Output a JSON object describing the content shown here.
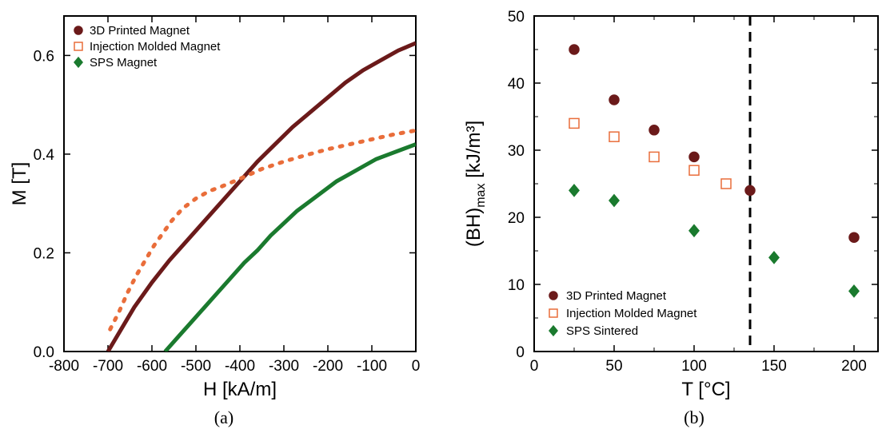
{
  "panel_a": {
    "type": "line",
    "caption": "(a)",
    "xlabel": "H [kA/m]",
    "ylabel": "M [T]",
    "xlim": [
      -800,
      0
    ],
    "ylim": [
      0.0,
      0.68
    ],
    "xticks": [
      -800,
      -700,
      -600,
      -500,
      -400,
      -300,
      -200,
      -100,
      0
    ],
    "yticks": [
      0.0,
      0.2,
      0.4,
      0.6
    ],
    "label_fontsize": 24,
    "tick_fontsize": 19,
    "axis_color": "#000000",
    "background_color": "#ffffff",
    "frame_linewidth": 2,
    "legend": {
      "position": "upper-left",
      "items": [
        {
          "label": "3D Printed Magnet",
          "color": "#6b1a1a",
          "marker": "circle",
          "marker_fill": "#6b1a1a",
          "linestyle": "solid"
        },
        {
          "label": "Injection Molded Magnet",
          "color": "#e96d3a",
          "marker": "square",
          "marker_fill": "#ffffff",
          "linestyle": "dotted"
        },
        {
          "label": "SPS Magnet",
          "color": "#1a7a2e",
          "marker": "diamond",
          "marker_fill": "#1a7a2e",
          "linestyle": "solid"
        }
      ],
      "fontsize": 15
    },
    "series": [
      {
        "name": "3D Printed Magnet",
        "color": "#6b1a1a",
        "linewidth": 5,
        "linestyle": "solid",
        "x": [
          -700,
          -670,
          -640,
          -600,
          -560,
          -520,
          -480,
          -440,
          -400,
          -360,
          -320,
          -280,
          -240,
          -200,
          -160,
          -120,
          -80,
          -40,
          0
        ],
        "y": [
          0.0,
          0.045,
          0.09,
          0.14,
          0.185,
          0.225,
          0.265,
          0.305,
          0.345,
          0.385,
          0.42,
          0.455,
          0.485,
          0.515,
          0.545,
          0.57,
          0.59,
          0.61,
          0.625
        ]
      },
      {
        "name": "Injection Molded Magnet",
        "color": "#e96d3a",
        "linewidth": 5,
        "linestyle": "dotted",
        "x": [
          -695,
          -675,
          -655,
          -635,
          -615,
          -595,
          -575,
          -555,
          -530,
          -500,
          -470,
          -440,
          -400,
          -350,
          -300,
          -250,
          -200,
          -150,
          -100,
          -50,
          0
        ],
        "y": [
          0.045,
          0.08,
          0.12,
          0.155,
          0.185,
          0.215,
          0.24,
          0.265,
          0.29,
          0.31,
          0.325,
          0.335,
          0.35,
          0.37,
          0.385,
          0.398,
          0.41,
          0.42,
          0.43,
          0.44,
          0.448
        ]
      },
      {
        "name": "SPS Magnet",
        "color": "#1a7a2e",
        "linewidth": 5,
        "linestyle": "solid",
        "x": [
          -570,
          -540,
          -510,
          -480,
          -450,
          -420,
          -390,
          -360,
          -330,
          -300,
          -270,
          -240,
          -210,
          -180,
          -150,
          -120,
          -90,
          -60,
          -30,
          0
        ],
        "y": [
          0.0,
          0.03,
          0.06,
          0.09,
          0.12,
          0.15,
          0.18,
          0.205,
          0.235,
          0.26,
          0.285,
          0.305,
          0.325,
          0.345,
          0.36,
          0.375,
          0.39,
          0.4,
          0.41,
          0.42
        ]
      }
    ]
  },
  "panel_b": {
    "type": "scatter",
    "caption": "(b)",
    "xlabel": "T [°C]",
    "ylabel": "(BH)ₘₐₓ [kJ/m³]",
    "ylabel_plain": "(BH)",
    "ylabel_sub": "max",
    "ylabel_unit": " [kJ/m³]",
    "xlim": [
      0,
      215
    ],
    "ylim": [
      0,
      50
    ],
    "xticks": [
      0,
      50,
      100,
      150,
      200
    ],
    "yticks": [
      0,
      10,
      20,
      30,
      40,
      50
    ],
    "label_fontsize": 24,
    "tick_fontsize": 19,
    "axis_color": "#000000",
    "background_color": "#ffffff",
    "frame_linewidth": 2,
    "vline": {
      "x": 135,
      "color": "#000000",
      "linestyle": "dashed",
      "linewidth": 3,
      "dash": "12,8"
    },
    "legend": {
      "position": "lower-left",
      "items": [
        {
          "label": "3D Printed Magnet",
          "color": "#6b1a1a",
          "marker": "circle",
          "marker_fill": "#6b1a1a"
        },
        {
          "label": "Injection Molded Magnet",
          "color": "#e96d3a",
          "marker": "square",
          "marker_fill": "#ffffff"
        },
        {
          "label": "SPS Sintered",
          "color": "#1a7a2e",
          "marker": "diamond",
          "marker_fill": "#1a7a2e"
        }
      ],
      "fontsize": 15
    },
    "series": [
      {
        "name": "3D Printed Magnet",
        "color": "#6b1a1a",
        "marker": "circle",
        "marker_fill": "#6b1a1a",
        "marker_size": 6,
        "x": [
          25,
          50,
          75,
          100,
          135,
          200
        ],
        "y": [
          45,
          37.5,
          33,
          29,
          24,
          17
        ]
      },
      {
        "name": "Injection Molded Magnet",
        "color": "#e96d3a",
        "marker": "square",
        "marker_fill": "#ffffff",
        "marker_size": 6,
        "x": [
          25,
          50,
          75,
          100,
          120
        ],
        "y": [
          34,
          32,
          29,
          27,
          25
        ]
      },
      {
        "name": "SPS Sintered",
        "color": "#1a7a2e",
        "marker": "diamond",
        "marker_fill": "#1a7a2e",
        "marker_size": 6,
        "x": [
          25,
          50,
          100,
          150,
          200
        ],
        "y": [
          24,
          22.5,
          18,
          14,
          9
        ]
      }
    ]
  }
}
